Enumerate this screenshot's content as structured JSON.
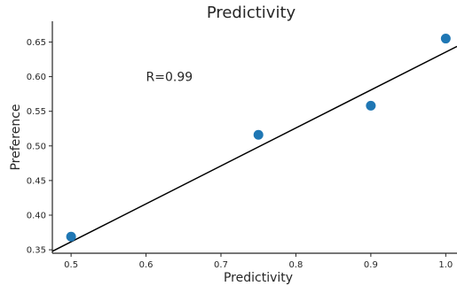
{
  "chart_data": {
    "type": "scatter",
    "title": "Predictivity",
    "xlabel": "Predictivity",
    "ylabel": "Preference",
    "xlim": [
      0.475,
      1.015
    ],
    "ylim": [
      0.345,
      0.68
    ],
    "xticks": [
      0.5,
      0.6,
      0.7,
      0.8,
      0.9,
      1.0
    ],
    "xtick_labels": [
      "0.5",
      "0.6",
      "0.7",
      "0.8",
      "0.9",
      "1.0"
    ],
    "yticks": [
      0.35,
      0.4,
      0.45,
      0.5,
      0.55,
      0.6,
      0.65
    ],
    "ytick_labels": [
      "0.35",
      "0.40",
      "0.45",
      "0.50",
      "0.55",
      "0.60",
      "0.65"
    ],
    "points": [
      {
        "x": 0.5,
        "y": 0.369
      },
      {
        "x": 0.75,
        "y": 0.516
      },
      {
        "x": 0.9,
        "y": 0.558
      },
      {
        "x": 1.0,
        "y": 0.655
      }
    ],
    "fit_line": {
      "slope": 0.548,
      "intercept": 0.0875
    },
    "annotation": {
      "text": "R=0.99",
      "x": 0.6,
      "y": 0.6
    },
    "grid": false,
    "colors": {
      "points": "#1f77b4",
      "line": "#000000",
      "axes": "#262626"
    }
  }
}
